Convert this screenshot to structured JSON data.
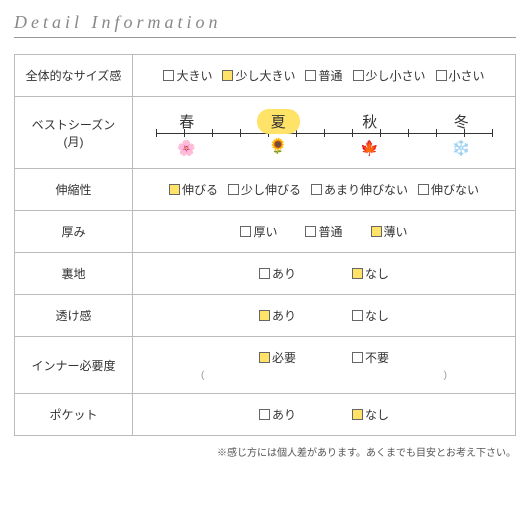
{
  "title": "Detail Information",
  "colors": {
    "selected": "#ffe268",
    "border": "#bbbbbb",
    "text": "#333333",
    "heading": "#888888"
  },
  "rows": {
    "size": {
      "label": "全体的なサイズ感",
      "options": [
        "大きい",
        "少し大きい",
        "普通",
        "少し小さい",
        "小さい"
      ],
      "selected": [
        1
      ]
    },
    "season": {
      "label": "ベストシーズン(月)",
      "seasons": [
        "春",
        "夏",
        "秋",
        "冬"
      ],
      "active": 1,
      "icons": [
        "flower-pink",
        "sunflower",
        "maple-leaf",
        "snowflake"
      ]
    },
    "stretch": {
      "label": "伸縮性",
      "options": [
        "伸びる",
        "少し伸びる",
        "あまり伸びない",
        "伸びない"
      ],
      "selected": [
        0
      ]
    },
    "thickness": {
      "label": "厚み",
      "options": [
        "厚い",
        "普通",
        "薄い"
      ],
      "selected": [
        2
      ]
    },
    "lining": {
      "label": "裏地",
      "options": [
        "あり",
        "なし"
      ],
      "selected": [
        1
      ]
    },
    "sheer": {
      "label": "透け感",
      "options": [
        "あり",
        "なし"
      ],
      "selected": [
        0
      ]
    },
    "inner": {
      "label": "インナー必要度",
      "options": [
        "必要",
        "不要"
      ],
      "selected": [
        0
      ],
      "parens": [
        "(",
        ")"
      ]
    },
    "pocket": {
      "label": "ポケット",
      "options": [
        "あり",
        "なし"
      ],
      "selected": [
        1
      ]
    }
  },
  "footnote": "※感じ方には個人差があります。あくまでも目安とお考え下さい。"
}
